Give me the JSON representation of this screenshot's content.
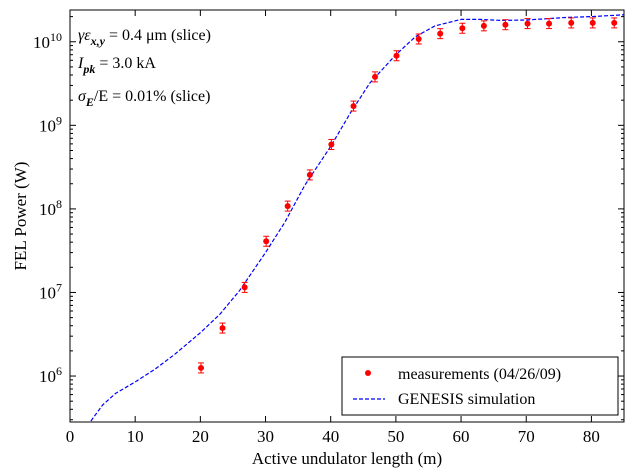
{
  "chart_data": {
    "type": "scatter",
    "title": "",
    "xlabel": "Active undulator length (m)",
    "ylabel": "FEL Power (W)",
    "xlim": [
      0,
      85
    ],
    "ylim_log10": [
      5.45,
      10.38
    ],
    "yscale": "log",
    "x_ticks": [
      0,
      10,
      20,
      30,
      40,
      50,
      60,
      70,
      80
    ],
    "y_ticks": [
      {
        "exp": 6,
        "base": "10",
        "sup": "6"
      },
      {
        "exp": 7,
        "base": "10",
        "sup": "7"
      },
      {
        "exp": 8,
        "base": "10",
        "sup": "8"
      },
      {
        "exp": 9,
        "base": "10",
        "sup": "9"
      },
      {
        "exp": 10,
        "base": "10",
        "sup": "10"
      }
    ],
    "grid": false,
    "legend_position": "bottom-right",
    "annotations": [
      {
        "pre": "γε",
        "sub": "x,y",
        "post": " = 0.4 μm (slice)"
      },
      {
        "pre": "I",
        "sub": "pk",
        "post": " = 3.0 kA"
      },
      {
        "pre": "σ",
        "sub": "E",
        "post": "/E = 0.01% (slice)"
      }
    ],
    "series": [
      {
        "name": "measurements (04/26/09)",
        "kind": "points",
        "color": "#ff0000",
        "x": [
          20.1,
          23.4,
          26.8,
          30.1,
          33.4,
          36.8,
          40.1,
          43.5,
          46.8,
          50.1,
          53.5,
          56.8,
          60.2,
          63.5,
          66.8,
          70.2,
          73.5,
          76.9,
          80.2,
          83.5
        ],
        "y": [
          1250000.0,
          3750000.0,
          11500000.0,
          41000000.0,
          108000000.0,
          255000000.0,
          590000000.0,
          1700000000.0,
          3800000000.0,
          6800000000.0,
          10800000000.0,
          12500000000.0,
          14500000000.0,
          15500000000.0,
          16000000000.0,
          16500000000.0,
          16500000000.0,
          16800000000.0,
          16800000000.0,
          16800000000.0
        ]
      },
      {
        "name": "GENESIS simulation",
        "kind": "line",
        "color": "#0000ff",
        "x": [
          3.2,
          5,
          7,
          10,
          13,
          16,
          20,
          23,
          26,
          30,
          33,
          36,
          40,
          43,
          46,
          50,
          53,
          56,
          60,
          63,
          66,
          70,
          73,
          76,
          80,
          85
        ],
        "y": [
          290000.0,
          450000.0,
          620000.0,
          850000.0,
          1200000.0,
          1800000.0,
          3300000.0,
          5500000.0,
          10500000.0,
          30000000.0,
          70000000.0,
          190000000.0,
          560000000.0,
          1400000000.0,
          3200000000.0,
          7000000000.0,
          11500000000.0,
          15500000000.0,
          18500000000.0,
          18500000000.0,
          18000000000.0,
          18200000000.0,
          18800000000.0,
          19500000000.0,
          20000000000.0,
          21000000000.0
        ]
      }
    ]
  }
}
